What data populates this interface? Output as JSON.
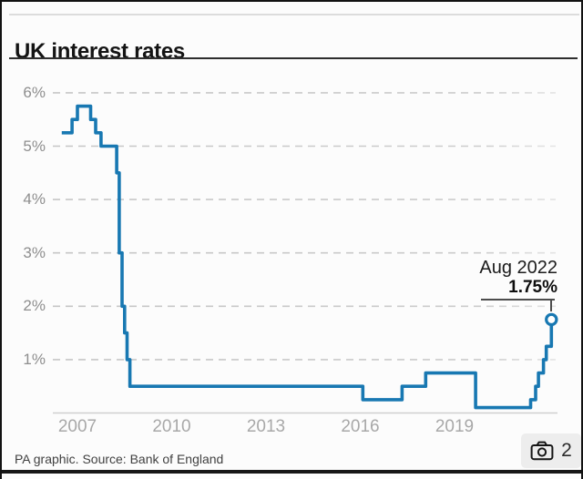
{
  "page": {
    "title": "UK interest rates",
    "source": "PA graphic. Source: Bank of England"
  },
  "annotation": {
    "date_label": "Aug 2022",
    "rate_label": "1.75%"
  },
  "gallery": {
    "count": "2",
    "icon": "camera-icon"
  },
  "colors": {
    "line_blue": "#1878b2",
    "grid_gray": "#c6c6c6",
    "grid_gray_fade": "#e4e4e4",
    "axis_gray": "#cfcfcf",
    "annotation_rule": "#4d4d4d"
  },
  "chart_data": {
    "type": "line",
    "title": "UK interest rates",
    "step": true,
    "grid": "dashed-horizontal",
    "ylim": [
      0,
      6.3
    ],
    "x_range_years": [
      2006.9,
      2022.7
    ],
    "y_ticks": [
      {
        "value": 6,
        "label": "6%"
      },
      {
        "value": 5,
        "label": "5%"
      },
      {
        "value": 4,
        "label": "4%"
      },
      {
        "value": 3,
        "label": "3%"
      },
      {
        "value": 2,
        "label": "2%"
      },
      {
        "value": 1,
        "label": "1%"
      }
    ],
    "x_ticks": [
      {
        "year": 2007,
        "label": "2007"
      },
      {
        "year": 2010,
        "label": "2010"
      },
      {
        "year": 2013,
        "label": "2013"
      },
      {
        "year": 2016,
        "label": "2016"
      },
      {
        "year": 2019,
        "label": "2019"
      }
    ],
    "points": [
      {
        "t": 2007.0,
        "date": "Jan 2007",
        "rate": 5.25
      },
      {
        "t": 2007.33,
        "date": "May 2007",
        "rate": 5.5
      },
      {
        "t": 2007.5,
        "date": "Jul 2007",
        "rate": 5.75
      },
      {
        "t": 2007.92,
        "date": "Dec 2007",
        "rate": 5.5
      },
      {
        "t": 2008.08,
        "date": "Feb 2008",
        "rate": 5.25
      },
      {
        "t": 2008.25,
        "date": "Apr 2008",
        "rate": 5.0
      },
      {
        "t": 2008.75,
        "date": "Oct 2008",
        "rate": 4.5
      },
      {
        "t": 2008.83,
        "date": "Nov 2008",
        "rate": 3.0
      },
      {
        "t": 2008.92,
        "date": "Dec 2008",
        "rate": 2.0
      },
      {
        "t": 2009.0,
        "date": "Jan 2009",
        "rate": 1.5
      },
      {
        "t": 2009.08,
        "date": "Feb 2009",
        "rate": 1.0
      },
      {
        "t": 2009.17,
        "date": "Mar 2009",
        "rate": 0.5
      },
      {
        "t": 2016.58,
        "date": "Aug 2016",
        "rate": 0.25
      },
      {
        "t": 2017.83,
        "date": "Nov 2017",
        "rate": 0.5
      },
      {
        "t": 2018.58,
        "date": "Aug 2018",
        "rate": 0.75
      },
      {
        "t": 2020.17,
        "date": "Mar 2020",
        "rate": 0.1
      },
      {
        "t": 2021.92,
        "date": "Dec 2021",
        "rate": 0.25
      },
      {
        "t": 2022.08,
        "date": "Feb 2022",
        "rate": 0.5
      },
      {
        "t": 2022.17,
        "date": "Mar 2022",
        "rate": 0.75
      },
      {
        "t": 2022.33,
        "date": "May 2022",
        "rate": 1.0
      },
      {
        "t": 2022.42,
        "date": "Jun 2022",
        "rate": 1.25
      },
      {
        "t": 2022.58,
        "date": "Aug 2022",
        "rate": 1.75
      }
    ],
    "end_marker": {
      "date": "Aug 2022",
      "rate": 1.75
    }
  }
}
